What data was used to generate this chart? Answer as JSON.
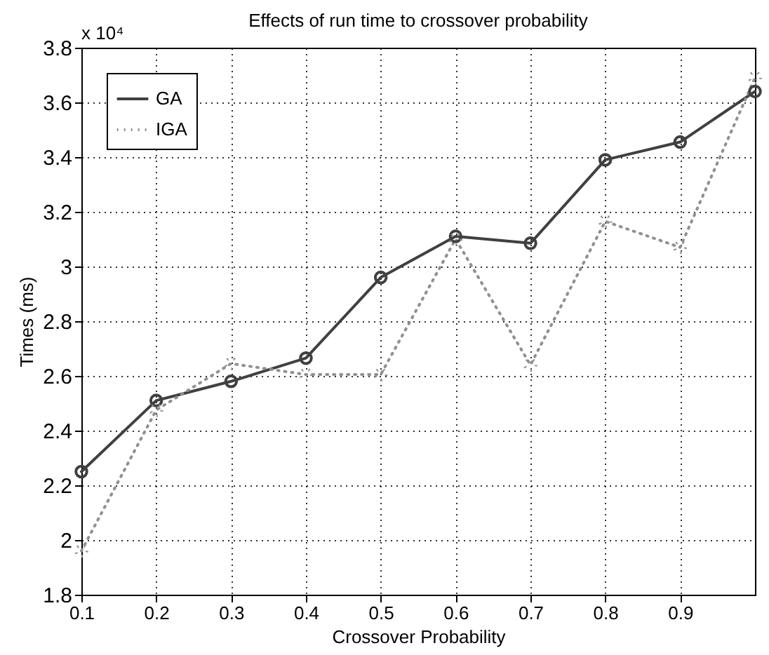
{
  "chart_data": {
    "type": "line",
    "title": "Effects of run time to crossover probability",
    "xlabel": "Crossover Probability",
    "ylabel": "Times (ms)",
    "annotations": [
      "x 10⁴"
    ],
    "x": [
      0.1,
      0.2,
      0.3,
      0.4,
      0.5,
      0.6,
      0.7,
      0.8,
      0.9,
      1.0
    ],
    "series": [
      {
        "name": "GA",
        "color": "#404040",
        "line_style": "solid",
        "values": [
          2.25,
          2.51,
          2.58,
          2.665,
          2.96,
          3.11,
          3.085,
          3.39,
          3.455,
          3.64
        ]
      },
      {
        "name": "IGA",
        "color": "#909090",
        "line_style": "dotted",
        "values": [
          1.96,
          2.475,
          2.645,
          2.605,
          2.605,
          3.1,
          2.64,
          3.165,
          3.07,
          3.69
        ]
      }
    ],
    "xlim": [
      0.1,
      1.0
    ],
    "xticks": [
      0.1,
      0.2,
      0.3,
      0.4,
      0.5,
      0.6,
      0.7,
      0.8,
      0.9
    ],
    "ylim": [
      1.8,
      3.8
    ],
    "yticks": [
      1.8,
      2,
      2.2,
      2.4,
      2.6,
      2.8,
      3,
      3.2,
      3.4,
      3.6,
      3.8
    ],
    "grid": true,
    "legend": "top left",
    "marker": "circle"
  }
}
